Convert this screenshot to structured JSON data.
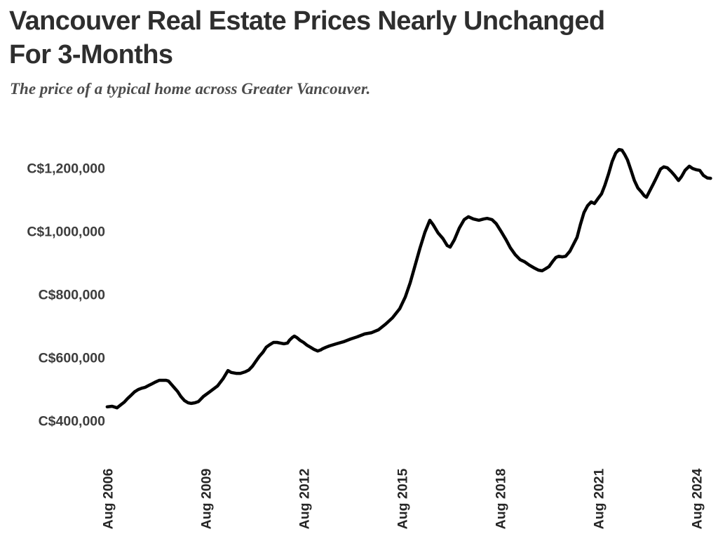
{
  "header": {
    "title_line1": "Vancouver Real Estate Prices Nearly Unchanged",
    "title_line2": "For 3-Months",
    "subtitle": "The price of a typical home across Greater Vancouver."
  },
  "theme": {
    "background": "#ffffff",
    "title_color": "#2e2e2e",
    "subtitle_color": "#4c4c4c",
    "y_tick_color": "#3d3d3d",
    "x_tick_color": "#262626",
    "line_color": "#000000"
  },
  "chart_data": {
    "type": "line",
    "title": "Vancouver Real Estate Prices Nearly Unchanged For 3-Months",
    "subtitle": "The price of a typical home across Greater Vancouver.",
    "series_name": "Price of a typical home, Greater Vancouver",
    "grid": false,
    "legend": false,
    "line_color": "#000000",
    "x_axis": {
      "ticks": [
        {
          "label": "Aug 2006",
          "year": 2006.625
        },
        {
          "label": "Aug 2009",
          "year": 2009.625
        },
        {
          "label": "Aug 2012",
          "year": 2012.625
        },
        {
          "label": "Aug 2015",
          "year": 2015.625
        },
        {
          "label": "Aug 2018",
          "year": 2018.625
        },
        {
          "label": "Aug 2021",
          "year": 2021.625
        },
        {
          "label": "Aug 2024",
          "year": 2024.625
        }
      ],
      "range": [
        2006.5,
        2025.1
      ]
    },
    "y_axis": {
      "ticks": [
        {
          "label": "C$1,200,000",
          "value": 1200000
        },
        {
          "label": "C$1,000,000",
          "value": 1000000
        },
        {
          "label": "C$800,000",
          "value": 800000
        },
        {
          "label": "C$600,000",
          "value": 600000
        },
        {
          "label": "C$400,000",
          "value": 400000
        }
      ],
      "range": [
        360000,
        1290000
      ]
    },
    "points": [
      [
        2006.58,
        447000
      ],
      [
        2006.73,
        449000
      ],
      [
        2006.88,
        444000
      ],
      [
        2006.99,
        453000
      ],
      [
        2007.1,
        462000
      ],
      [
        2007.2,
        473000
      ],
      [
        2007.31,
        484000
      ],
      [
        2007.42,
        495000
      ],
      [
        2007.53,
        502000
      ],
      [
        2007.63,
        506000
      ],
      [
        2007.74,
        509000
      ],
      [
        2007.85,
        515000
      ],
      [
        2007.95,
        520000
      ],
      [
        2008.06,
        526000
      ],
      [
        2008.17,
        531000
      ],
      [
        2008.38,
        531000
      ],
      [
        2008.45,
        529000
      ],
      [
        2008.51,
        522000
      ],
      [
        2008.62,
        509000
      ],
      [
        2008.73,
        496000
      ],
      [
        2008.83,
        480000
      ],
      [
        2008.94,
        467000
      ],
      [
        2009.05,
        460000
      ],
      [
        2009.15,
        458000
      ],
      [
        2009.26,
        460000
      ],
      [
        2009.37,
        464000
      ],
      [
        2009.52,
        480000
      ],
      [
        2009.73,
        496000
      ],
      [
        2009.95,
        513000
      ],
      [
        2010.12,
        536000
      ],
      [
        2010.27,
        562000
      ],
      [
        2010.37,
        556000
      ],
      [
        2010.52,
        553000
      ],
      [
        2010.65,
        553000
      ],
      [
        2010.8,
        558000
      ],
      [
        2010.91,
        564000
      ],
      [
        2011.02,
        576000
      ],
      [
        2011.12,
        591000
      ],
      [
        2011.23,
        607000
      ],
      [
        2011.34,
        620000
      ],
      [
        2011.44,
        636000
      ],
      [
        2011.55,
        644000
      ],
      [
        2011.66,
        651000
      ],
      [
        2011.77,
        651000
      ],
      [
        2011.87,
        649000
      ],
      [
        2011.98,
        647000
      ],
      [
        2012.09,
        649000
      ],
      [
        2012.15,
        658000
      ],
      [
        2012.24,
        667000
      ],
      [
        2012.3,
        671000
      ],
      [
        2012.37,
        667000
      ],
      [
        2012.47,
        658000
      ],
      [
        2012.58,
        651000
      ],
      [
        2012.69,
        642000
      ],
      [
        2012.79,
        636000
      ],
      [
        2012.9,
        629000
      ],
      [
        2013.01,
        624000
      ],
      [
        2013.1,
        627000
      ],
      [
        2013.16,
        631000
      ],
      [
        2013.27,
        636000
      ],
      [
        2013.37,
        640000
      ],
      [
        2013.59,
        647000
      ],
      [
        2013.8,
        653000
      ],
      [
        2014.02,
        662000
      ],
      [
        2014.23,
        669000
      ],
      [
        2014.45,
        678000
      ],
      [
        2014.66,
        682000
      ],
      [
        2014.87,
        691000
      ],
      [
        2015.09,
        709000
      ],
      [
        2015.3,
        729000
      ],
      [
        2015.52,
        758000
      ],
      [
        2015.69,
        795000
      ],
      [
        2015.84,
        840000
      ],
      [
        2015.99,
        895000
      ],
      [
        2016.14,
        950000
      ],
      [
        2016.29,
        1000000
      ],
      [
        2016.44,
        1038000
      ],
      [
        2016.54,
        1024000
      ],
      [
        2016.69,
        998000
      ],
      [
        2016.84,
        980000
      ],
      [
        2016.97,
        958000
      ],
      [
        2017.06,
        953000
      ],
      [
        2017.19,
        976000
      ],
      [
        2017.34,
        1013000
      ],
      [
        2017.49,
        1040000
      ],
      [
        2017.62,
        1049000
      ],
      [
        2017.77,
        1042000
      ],
      [
        2017.94,
        1038000
      ],
      [
        2018.09,
        1042000
      ],
      [
        2018.19,
        1044000
      ],
      [
        2018.34,
        1040000
      ],
      [
        2018.47,
        1027000
      ],
      [
        2018.62,
        1002000
      ],
      [
        2018.77,
        976000
      ],
      [
        2018.9,
        951000
      ],
      [
        2019.05,
        929000
      ],
      [
        2019.2,
        913000
      ],
      [
        2019.33,
        907000
      ],
      [
        2019.48,
        896000
      ],
      [
        2019.63,
        887000
      ],
      [
        2019.76,
        880000
      ],
      [
        2019.87,
        878000
      ],
      [
        2019.97,
        884000
      ],
      [
        2020.08,
        891000
      ],
      [
        2020.19,
        907000
      ],
      [
        2020.29,
        920000
      ],
      [
        2020.38,
        924000
      ],
      [
        2020.49,
        922000
      ],
      [
        2020.59,
        924000
      ],
      [
        2020.72,
        940000
      ],
      [
        2020.83,
        962000
      ],
      [
        2020.94,
        984000
      ],
      [
        2021.04,
        1024000
      ],
      [
        2021.15,
        1062000
      ],
      [
        2021.26,
        1084000
      ],
      [
        2021.37,
        1096000
      ],
      [
        2021.47,
        1091000
      ],
      [
        2021.58,
        1107000
      ],
      [
        2021.69,
        1122000
      ],
      [
        2021.79,
        1149000
      ],
      [
        2021.9,
        1184000
      ],
      [
        2022.01,
        1224000
      ],
      [
        2022.12,
        1251000
      ],
      [
        2022.22,
        1262000
      ],
      [
        2022.31,
        1260000
      ],
      [
        2022.39,
        1247000
      ],
      [
        2022.48,
        1229000
      ],
      [
        2022.59,
        1196000
      ],
      [
        2022.69,
        1164000
      ],
      [
        2022.8,
        1140000
      ],
      [
        2022.91,
        1127000
      ],
      [
        2022.99,
        1116000
      ],
      [
        2023.06,
        1111000
      ],
      [
        2023.16,
        1131000
      ],
      [
        2023.27,
        1153000
      ],
      [
        2023.38,
        1176000
      ],
      [
        2023.49,
        1200000
      ],
      [
        2023.59,
        1207000
      ],
      [
        2023.7,
        1204000
      ],
      [
        2023.81,
        1193000
      ],
      [
        2023.92,
        1180000
      ],
      [
        2024.04,
        1164000
      ],
      [
        2024.13,
        1176000
      ],
      [
        2024.24,
        1196000
      ],
      [
        2024.37,
        1209000
      ],
      [
        2024.47,
        1202000
      ],
      [
        2024.58,
        1198000
      ],
      [
        2024.69,
        1196000
      ],
      [
        2024.8,
        1180000
      ],
      [
        2024.92,
        1172000
      ],
      [
        2025.02,
        1171000
      ]
    ]
  }
}
